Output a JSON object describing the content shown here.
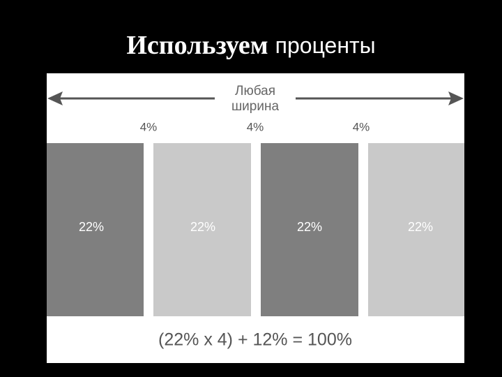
{
  "header": {
    "title": [
      "Используем",
      "проценты"
    ]
  },
  "diagram": {
    "width_label": [
      "Любая",
      "ширина"
    ],
    "gaps": [
      "4%",
      "4%",
      "4%"
    ],
    "columns": [
      "22%",
      "22%",
      "22%",
      "22%"
    ],
    "formula": "(22% x 4) + 12% = 100%"
  }
}
